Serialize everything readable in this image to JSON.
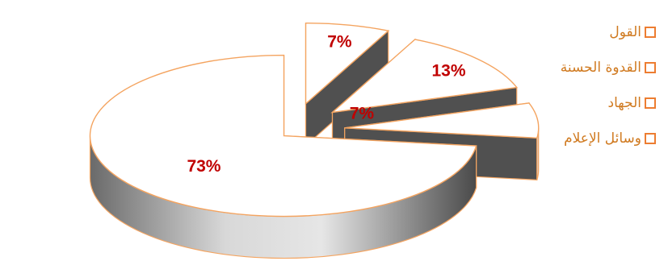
{
  "chart_data": {
    "type": "pie",
    "categories": [
      "القول",
      "القدوة الحسنة",
      "الجهاد",
      "وسائل الإعلام"
    ],
    "values": [
      7,
      13,
      7,
      73
    ],
    "data_labels": [
      "7%",
      "13%",
      "7%",
      "73%"
    ],
    "legend": "right",
    "colors": {
      "slice_fill": "#ffffff",
      "slice_edge": "#f4a460",
      "side_dark": "#505050",
      "label": "#c00000",
      "legend_text": "#d07a20",
      "legend_marker": "#ed7d31"
    }
  }
}
